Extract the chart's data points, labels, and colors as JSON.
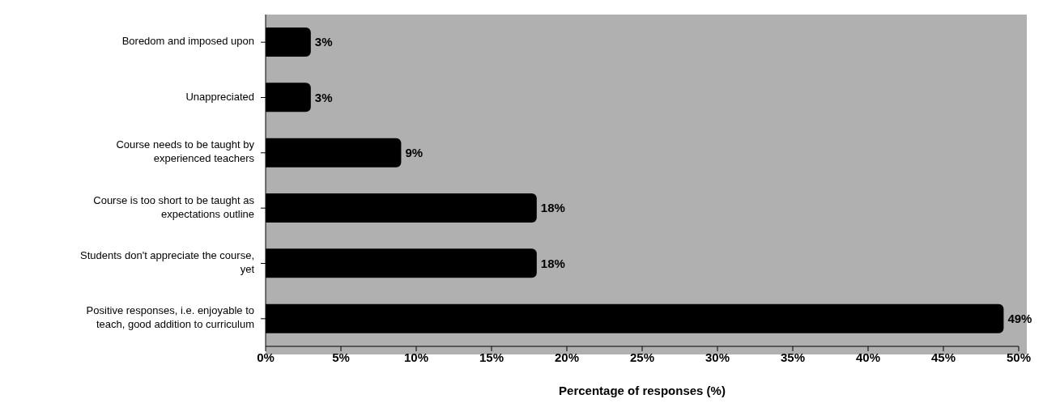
{
  "chart_data": {
    "type": "bar",
    "orientation": "horizontal",
    "xlabel": "Percentage of responses (%)",
    "categories": [
      "Boredom and imposed upon",
      "Unappreciated",
      "Course needs to be taught by experienced teachers",
      "Course is too short to be taught as expectations outline",
      "Students don't appreciate the course, yet",
      "Positive responses, i.e. enjoyable to teach, good addition to curriculum"
    ],
    "values": [
      3,
      3,
      9,
      18,
      18,
      49
    ],
    "value_labels": [
      "3%",
      "3%",
      "9%",
      "18%",
      "18%",
      "49%"
    ],
    "color": "#000000",
    "xlim": [
      0,
      50
    ],
    "xticks": [
      {
        "value": 0,
        "label": "0%"
      },
      {
        "value": 5,
        "label": "5%"
      },
      {
        "value": 10,
        "label": "10%"
      },
      {
        "value": 15,
        "label": "15%"
      },
      {
        "value": 20,
        "label": "20%"
      },
      {
        "value": 25,
        "label": "25%"
      },
      {
        "value": 30,
        "label": "30%"
      },
      {
        "value": 35,
        "label": "35%"
      },
      {
        "value": 40,
        "label": "40%"
      },
      {
        "value": 45,
        "label": "45%"
      },
      {
        "value": 50,
        "label": "50%"
      }
    ],
    "grid": false,
    "legend": false
  }
}
